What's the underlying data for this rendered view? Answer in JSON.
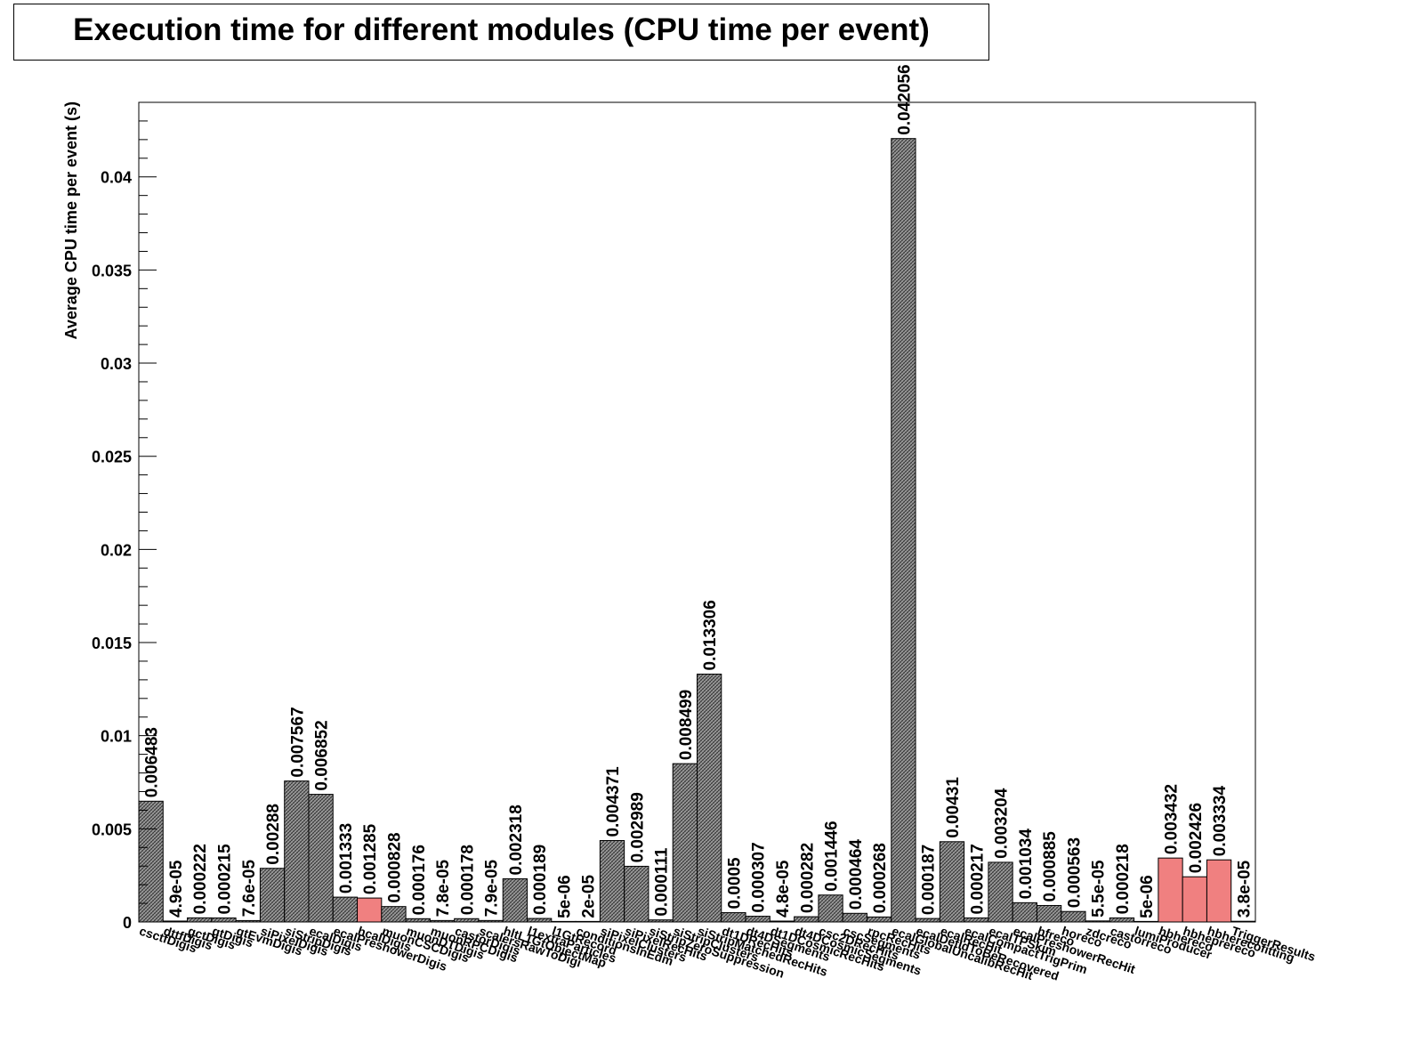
{
  "colors": {
    "bar_fill": "#808080",
    "bar_highlight_fill": "#f08080",
    "axis": "#000000",
    "background": "#ffffff"
  },
  "chart_data": {
    "type": "bar",
    "title": "Execution time for different modules (CPU time per event)",
    "xlabel": "",
    "ylabel": "Average CPU time per event (s)",
    "ylim": [
      0,
      0.044
    ],
    "y_ticks": [
      "0",
      "0.005",
      "0.01",
      "0.015",
      "0.02",
      "0.025",
      "0.03",
      "0.035",
      "0.04"
    ],
    "y_tick_values": [
      0,
      0.005,
      0.01,
      0.015,
      0.02,
      0.025,
      0.03,
      0.035,
      0.04
    ],
    "grid": false,
    "categories": [
      "csctfDigis",
      "dttfDigis",
      "gctDigis",
      "gtDigis",
      "gtEvmDigis",
      "siPixelDigis",
      "siStripDigis",
      "ecalDigis",
      "ecalPreshowerDigis",
      "hcalDigis",
      "muonCSCDigis",
      "muonDTDigis",
      "muonRPCDigis",
      "castorDigis",
      "scalersRawToDigi",
      "hltL1GtObjectMap",
      "l1extraParticles",
      "l1GtRecord",
      "conditionsInEdm",
      "siPixelClusters",
      "siPixelRecHits",
      "siStripZeroSuppression",
      "siStripClusters",
      "siStripMatchedRecHits",
      "dt1DRecHits",
      "dt4DSegments",
      "dt1DCosmicRecHits",
      "dt4DCosmicSegments",
      "csc2DRecHits",
      "cscSegments",
      "rpcRecHits",
      "ecalGlobalUncalibRecHit",
      "ecalDetIdToBeRecovered",
      "ecalRecHit",
      "ecalCompactTrigPrim",
      "ecalTPSkim",
      "ecalPreshowerRecHit",
      "hfreco",
      "horeco",
      "zdcreco",
      "castorreco",
      "lumiProducer",
      "hbhereco",
      "hbheprereco",
      "hbherecofitting",
      "TriggerResults"
    ],
    "values": [
      0.006483,
      4.9e-05,
      0.000222,
      0.000215,
      7.6e-05,
      0.00288,
      0.007567,
      0.006852,
      0.001333,
      0.001285,
      0.000828,
      0.000176,
      7.8e-05,
      0.000178,
      7.9e-05,
      0.002318,
      0.000189,
      5e-06,
      2e-05,
      0.004371,
      0.002989,
      0.000111,
      0.008499,
      0.013306,
      0.0005,
      0.000307,
      4.8e-05,
      0.000282,
      0.001446,
      0.000464,
      0.000268,
      0.042056,
      0.000187,
      0.00431,
      0.000217,
      0.003204,
      0.001034,
      0.000885,
      0.000563,
      5.5e-05,
      0.000218,
      5e-06,
      0.003432,
      0.002426,
      0.003334,
      3.8e-05
    ],
    "value_labels": [
      "0.006483",
      "4.9e-05",
      "0.000222",
      "0.000215",
      "7.6e-05",
      "0.00288",
      "0.007567",
      "0.006852",
      "0.001333",
      "0.001285",
      "0.000828",
      "0.000176",
      "7.8e-05",
      "0.000178",
      "7.9e-05",
      "0.002318",
      "0.000189",
      "5e-06",
      "2e-05",
      "0.004371",
      "0.002989",
      "0.000111",
      "0.008499",
      "0.013306",
      "0.0005",
      "0.000307",
      "4.8e-05",
      "0.000282",
      "0.001446",
      "0.000464",
      "0.000268",
      "0.042056",
      "0.000187",
      "0.00431",
      "0.000217",
      "0.003204",
      "0.001034",
      "0.000885",
      "0.000563",
      "5.5e-05",
      "0.000218",
      "5e-06",
      "0.003432",
      "0.002426",
      "0.003334",
      "3.8e-05"
    ],
    "highlighted": [
      false,
      false,
      false,
      false,
      false,
      false,
      false,
      false,
      false,
      true,
      false,
      false,
      false,
      false,
      false,
      false,
      false,
      false,
      false,
      false,
      false,
      false,
      false,
      false,
      false,
      false,
      false,
      false,
      false,
      false,
      false,
      false,
      false,
      false,
      false,
      false,
      false,
      false,
      false,
      false,
      false,
      false,
      true,
      true,
      true,
      false
    ]
  }
}
